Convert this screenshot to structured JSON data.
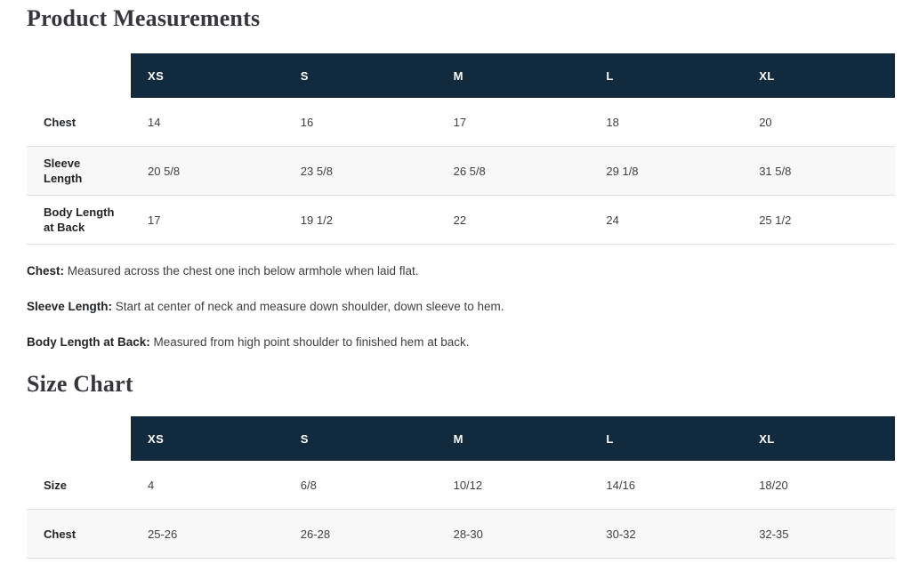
{
  "sections": {
    "measurements": {
      "title": "Product Measurements",
      "columns": [
        "XS",
        "S",
        "M",
        "L",
        "XL"
      ],
      "rows": [
        {
          "label_lines": [
            "Chest"
          ],
          "values": [
            "14",
            "16",
            "17",
            "18",
            "20"
          ]
        },
        {
          "label_lines": [
            "Sleeve",
            "Length"
          ],
          "values": [
            "20 5/8",
            "23 5/8",
            "26 5/8",
            "29 1/8",
            "31 5/8"
          ]
        },
        {
          "label_lines": [
            "Body Length",
            "at Back"
          ],
          "values": [
            "17",
            "19 1/2",
            "22",
            "24",
            "25 1/2"
          ]
        }
      ],
      "descriptions": [
        {
          "term": "Chest:",
          "text": " Measured across the chest one inch below armhole when laid flat."
        },
        {
          "term": "Sleeve Length:",
          "text": " Start at center of neck and measure down shoulder, down sleeve to hem."
        },
        {
          "term": "Body Length at Back:",
          "text": " Measured from high point shoulder to finished hem at back."
        }
      ]
    },
    "size_chart": {
      "title": "Size Chart",
      "columns": [
        "XS",
        "S",
        "M",
        "L",
        "XL"
      ],
      "rows": [
        {
          "label_lines": [
            "Size"
          ],
          "values": [
            "4",
            "6/8",
            "10/12",
            "14/16",
            "18/20"
          ]
        },
        {
          "label_lines": [
            "Chest"
          ],
          "values": [
            "25-26",
            "26-28",
            "28-30",
            "30-32",
            "32-35"
          ]
        }
      ]
    }
  },
  "colors": {
    "header_bg": "#122a3d",
    "header_text": "#ffffff",
    "stripe_bg": "#f8f8f8",
    "divider": "#e2e2e2",
    "title_text": "#35373c",
    "body_text": "#3d4043"
  }
}
